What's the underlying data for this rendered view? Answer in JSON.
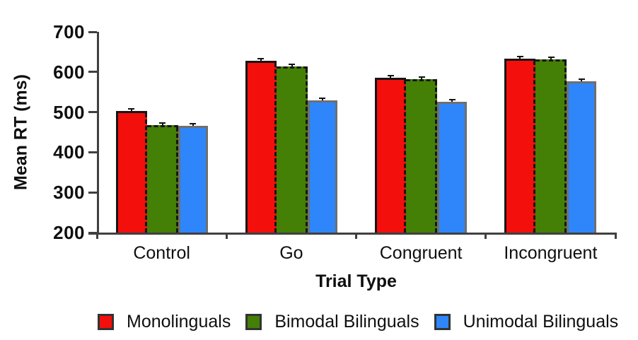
{
  "chart_data": {
    "type": "bar",
    "title": "",
    "xlabel": "Trial Type",
    "ylabel": "Mean RT (ms)",
    "categories": [
      "Control",
      "Go",
      "Congruent",
      "Incongruent"
    ],
    "series": [
      {
        "name": "Monolinguals",
        "color": "#F30F0C",
        "outline": "solid-black",
        "values": [
          503,
          627,
          586,
          633
        ]
      },
      {
        "name": "Bimodal Bilinguals",
        "color": "#447F06",
        "outline": "dashed-black",
        "values": [
          467,
          613,
          582,
          631
        ]
      },
      {
        "name": "Unimodal Bilinguals",
        "color": "#2E86FA",
        "outline": "solid-gray",
        "values": [
          466,
          530,
          525,
          577
        ]
      }
    ],
    "ylim": [
      200,
      700
    ],
    "yticks": [
      200,
      300,
      400,
      500,
      600,
      700
    ],
    "error_bar_approx_ms": 5,
    "legend_position": "bottom",
    "grid": false
  },
  "colors": {
    "axis": "#404040",
    "text": "#0F0F0F",
    "bar_border_dark": "#161616",
    "bar_border_gray": "#6F6F6F",
    "legend_swatch_border": "#333333"
  }
}
